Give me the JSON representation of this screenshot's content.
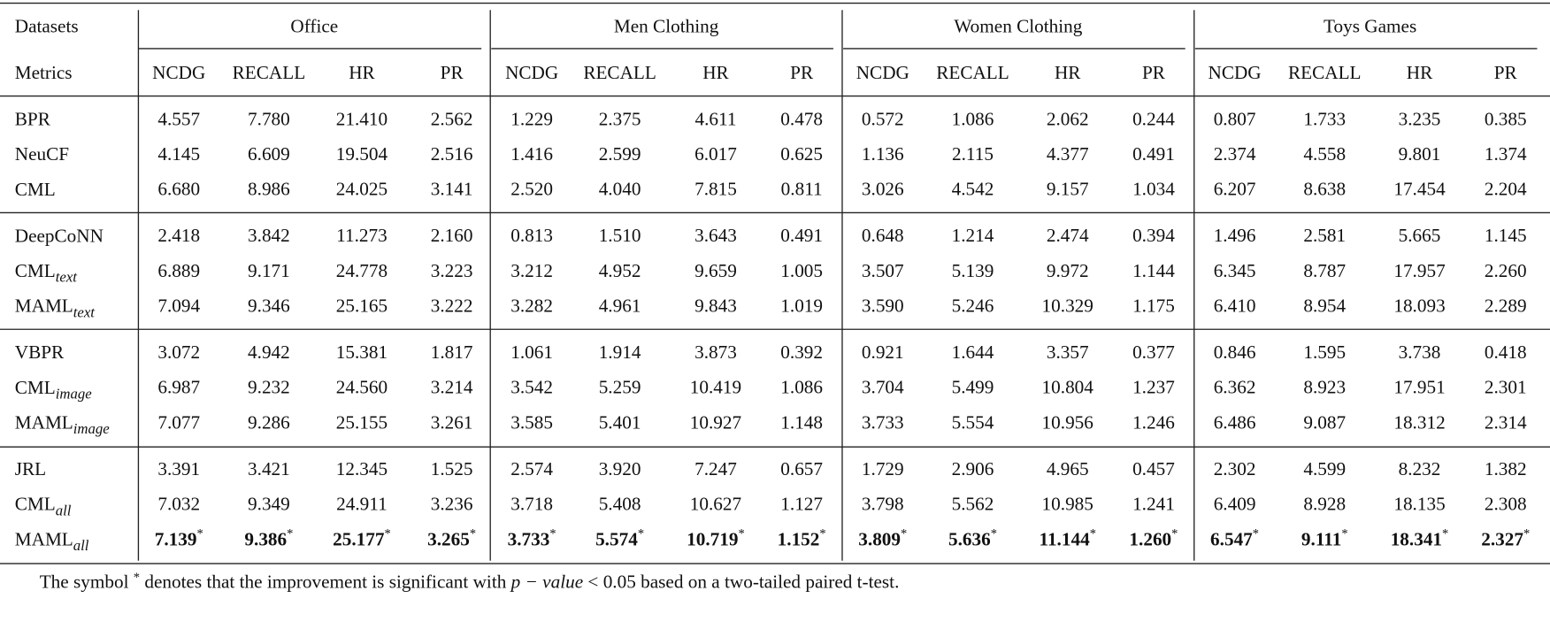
{
  "table": {
    "header": {
      "corner": "Datasets",
      "groups": [
        "Office",
        "Men Clothing",
        "Women Clothing",
        "Toys Games"
      ],
      "metrics_label": "Metrics",
      "metrics": [
        "NCDG",
        "RECALL",
        "HR",
        "PR"
      ]
    },
    "blocks": [
      [
        {
          "method": {
            "name": "BPR"
          },
          "values": [
            "4.557",
            "7.780",
            "21.410",
            "2.562",
            "1.229",
            "2.375",
            "4.611",
            "0.478",
            "0.572",
            "1.086",
            "2.062",
            "0.244",
            "0.807",
            "1.733",
            "3.235",
            "0.385"
          ]
        },
        {
          "method": {
            "name": "NeuCF"
          },
          "values": [
            "4.145",
            "6.609",
            "19.504",
            "2.516",
            "1.416",
            "2.599",
            "6.017",
            "0.625",
            "1.136",
            "2.115",
            "4.377",
            "0.491",
            "2.374",
            "4.558",
            "9.801",
            "1.374"
          ]
        },
        {
          "method": {
            "name": "CML"
          },
          "values": [
            "6.680",
            "8.986",
            "24.025",
            "3.141",
            "2.520",
            "4.040",
            "7.815",
            "0.811",
            "3.026",
            "4.542",
            "9.157",
            "1.034",
            "6.207",
            "8.638",
            "17.454",
            "2.204"
          ]
        }
      ],
      [
        {
          "method": {
            "name": "DeepCoNN"
          },
          "values": [
            "2.418",
            "3.842",
            "11.273",
            "2.160",
            "0.813",
            "1.510",
            "3.643",
            "0.491",
            "0.648",
            "1.214",
            "2.474",
            "0.394",
            "1.496",
            "2.581",
            "5.665",
            "1.145"
          ]
        },
        {
          "method": {
            "name": "CML",
            "sub": "text"
          },
          "values": [
            "6.889",
            "9.171",
            "24.778",
            "3.223",
            "3.212",
            "4.952",
            "9.659",
            "1.005",
            "3.507",
            "5.139",
            "9.972",
            "1.144",
            "6.345",
            "8.787",
            "17.957",
            "2.260"
          ]
        },
        {
          "method": {
            "name": "MAML",
            "sub": "text"
          },
          "values": [
            "7.094",
            "9.346",
            "25.165",
            "3.222",
            "3.282",
            "4.961",
            "9.843",
            "1.019",
            "3.590",
            "5.246",
            "10.329",
            "1.175",
            "6.410",
            "8.954",
            "18.093",
            "2.289"
          ]
        }
      ],
      [
        {
          "method": {
            "name": "VBPR"
          },
          "values": [
            "3.072",
            "4.942",
            "15.381",
            "1.817",
            "1.061",
            "1.914",
            "3.873",
            "0.392",
            "0.921",
            "1.644",
            "3.357",
            "0.377",
            "0.846",
            "1.595",
            "3.738",
            "0.418"
          ]
        },
        {
          "method": {
            "name": "CML",
            "sub": "image"
          },
          "values": [
            "6.987",
            "9.232",
            "24.560",
            "3.214",
            "3.542",
            "5.259",
            "10.419",
            "1.086",
            "3.704",
            "5.499",
            "10.804",
            "1.237",
            "6.362",
            "8.923",
            "17.951",
            "2.301"
          ]
        },
        {
          "method": {
            "name": "MAML",
            "sub": "image"
          },
          "values": [
            "7.077",
            "9.286",
            "25.155",
            "3.261",
            "3.585",
            "5.401",
            "10.927",
            "1.148",
            "3.733",
            "5.554",
            "10.956",
            "1.246",
            "6.486",
            "9.087",
            "18.312",
            "2.314"
          ]
        }
      ],
      [
        {
          "method": {
            "name": "JRL"
          },
          "values": [
            "3.391",
            "3.421",
            "12.345",
            "1.525",
            "2.574",
            "3.920",
            "7.247",
            "0.657",
            "1.729",
            "2.906",
            "4.965",
            "0.457",
            "2.302",
            "4.599",
            "8.232",
            "1.382"
          ]
        },
        {
          "method": {
            "name": "CML",
            "sub": "all"
          },
          "values": [
            "7.032",
            "9.349",
            "24.911",
            "3.236",
            "3.718",
            "5.408",
            "10.627",
            "1.127",
            "3.798",
            "5.562",
            "10.985",
            "1.241",
            "6.409",
            "8.928",
            "18.135",
            "2.308"
          ]
        },
        {
          "method": {
            "name": "MAML",
            "sub": "all"
          },
          "bold": true,
          "values": [
            {
              "value": "7.139",
              "mark": "*"
            },
            {
              "value": "9.386",
              "mark": "*"
            },
            {
              "value": "25.177",
              "mark": "*"
            },
            {
              "value": "3.265",
              "mark": "*"
            },
            {
              "value": "3.733",
              "mark": "*"
            },
            {
              "value": "5.574",
              "mark": "*"
            },
            {
              "value": "10.719",
              "mark": "*"
            },
            {
              "value": "1.152",
              "mark": "*"
            },
            {
              "value": "3.809",
              "mark": "*"
            },
            {
              "value": "5.636",
              "mark": "*"
            },
            {
              "value": "11.144",
              "mark": "*"
            },
            {
              "value": "1.260",
              "mark": "*"
            },
            {
              "value": "6.547",
              "mark": "*"
            },
            {
              "value": "9.111",
              "mark": "*"
            },
            {
              "value": "18.341",
              "mark": "*"
            },
            {
              "value": "2.327",
              "mark": "*"
            }
          ]
        }
      ]
    ],
    "footnote": {
      "before": "The symbol ",
      "mark": "*",
      "middle": " denotes that the improvement is significant with ",
      "math": "p − value",
      "after": " < 0.05 based on a two-tailed paired t-test."
    }
  }
}
